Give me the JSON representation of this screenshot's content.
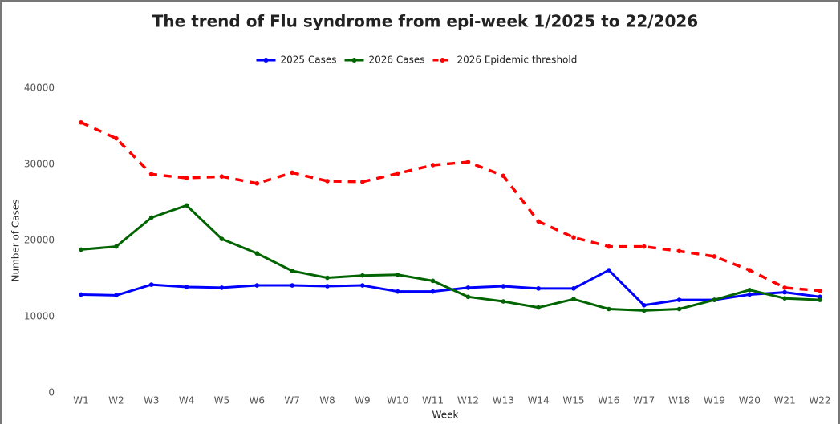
{
  "chart_data": {
    "type": "line",
    "title": "The trend of Flu syndrome from epi-week 1/2025 to 22/2026",
    "xlabel": "Week",
    "ylabel": "Number of Cases",
    "categories": [
      "W1",
      "W2",
      "W3",
      "W4",
      "W5",
      "W6",
      "W7",
      "W8",
      "W9",
      "W10",
      "W11",
      "W12",
      "W13",
      "W14",
      "W15",
      "W16",
      "W17",
      "W18",
      "W19",
      "W20",
      "W21",
      "W22"
    ],
    "series": [
      {
        "name": "2025 Cases",
        "color": "#0000ff",
        "dashed": false,
        "values": [
          12900,
          12800,
          14200,
          13900,
          13800,
          14100,
          14100,
          14000,
          14100,
          13300,
          13300,
          13800,
          14000,
          13700,
          13700,
          16100,
          11500,
          12200,
          12200,
          12900,
          13200,
          12600
        ]
      },
      {
        "name": "2026 Cases",
        "color": "#006400",
        "dashed": false,
        "values": [
          18800,
          19200,
          23000,
          24600,
          20200,
          18300,
          16000,
          15100,
          15400,
          15500,
          14700,
          12600,
          12000,
          11200,
          12300,
          11000,
          10800,
          11000,
          12200,
          13500,
          12400,
          12200
        ]
      },
      {
        "name": "2026 Epidemic threshold",
        "color": "#ff0000",
        "dashed": true,
        "values": [
          35500,
          33400,
          28700,
          28200,
          28400,
          27500,
          28900,
          27800,
          27700,
          28800,
          29900,
          30300,
          28500,
          22500,
          20400,
          19200,
          19200,
          18600,
          17900,
          16100,
          13800,
          13400
        ]
      }
    ],
    "ylim": [
      0,
      40000
    ],
    "yticks": [
      0,
      10000,
      20000,
      30000,
      40000
    ],
    "grid": false,
    "legend": "top"
  }
}
